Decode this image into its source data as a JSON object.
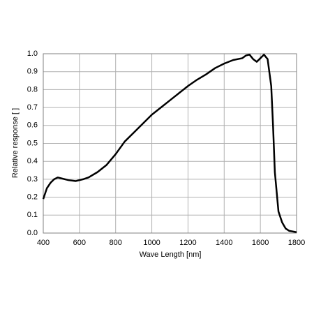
{
  "chart_data": {
    "type": "line",
    "xlabel": "Wave Length [nm]",
    "ylabel": "Relative response [ ]",
    "x": [
      400,
      420,
      440,
      460,
      480,
      500,
      540,
      580,
      620,
      650,
      700,
      750,
      800,
      850,
      900,
      950,
      1000,
      1050,
      1100,
      1150,
      1200,
      1250,
      1300,
      1350,
      1400,
      1450,
      1500,
      1520,
      1540,
      1560,
      1580,
      1600,
      1620,
      1640,
      1660,
      1670,
      1680,
      1700,
      1720,
      1740,
      1760,
      1800
    ],
    "series": [
      {
        "color": "#000000",
        "values": [
          0.19,
          0.25,
          0.28,
          0.3,
          0.31,
          0.305,
          0.295,
          0.29,
          0.3,
          0.31,
          0.34,
          0.38,
          0.44,
          0.51,
          0.56,
          0.61,
          0.66,
          0.7,
          0.74,
          0.78,
          0.82,
          0.855,
          0.885,
          0.92,
          0.945,
          0.965,
          0.975,
          0.99,
          0.995,
          0.97,
          0.955,
          0.975,
          0.995,
          0.97,
          0.82,
          0.6,
          0.34,
          0.12,
          0.06,
          0.025,
          0.012,
          0.005
        ]
      }
    ],
    "xlim": [
      400,
      1800
    ],
    "xticks": [
      400,
      600,
      800,
      1000,
      1200,
      1400,
      1600,
      1800
    ],
    "ylim": [
      0,
      1
    ],
    "yticks": [
      {
        "value": 0,
        "label": "0.0"
      },
      0.1,
      0.2,
      0.3,
      0.4,
      0.5,
      0.6,
      0.7,
      0.8,
      0.9,
      {
        "value": 1,
        "label": "1.0"
      }
    ],
    "grid": true
  }
}
